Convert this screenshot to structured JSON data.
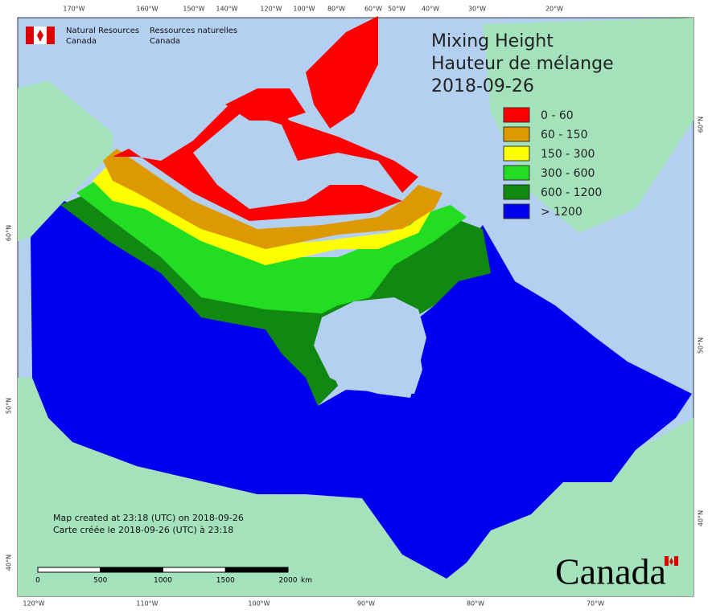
{
  "logo": {
    "en": [
      "Natural Resources",
      "Canada"
    ],
    "fr": [
      "Ressources naturelles",
      "Canada"
    ]
  },
  "title": {
    "en": "Mixing Height",
    "fr": "Hauteur de mélange",
    "date": "2018-09-26"
  },
  "legend": [
    {
      "label": "0 - 60",
      "color": "#ff0000"
    },
    {
      "label": "60 - 150",
      "color": "#dd9900"
    },
    {
      "label": "150 - 300",
      "color": "#ffff00"
    },
    {
      "label": "300 - 600",
      "color": "#22dd22"
    },
    {
      "label": "600 - 1200",
      "color": "#118811"
    },
    {
      "label": "> 1200",
      "color": "#0000ee"
    }
  ],
  "graticule": {
    "top": [
      "170°W",
      "160°W",
      "150°W",
      "140°W",
      "120°W",
      "100°W",
      "80°W",
      "60°W",
      "50°W",
      "40°W",
      "30°W",
      "20°W"
    ],
    "bottom": [
      "120°W",
      "110°W",
      "100°W",
      "90°W",
      "80°W",
      "70°W"
    ],
    "left": [
      "60°N",
      "50°N",
      "40°N"
    ],
    "right": [
      "60°N",
      "50°N",
      "40°N"
    ]
  },
  "scale": {
    "ticks": [
      0,
      500,
      1000,
      1500,
      2000
    ],
    "unit": "km"
  },
  "notes": [
    "Map created at 23:18 (UTC) on 2018-09-26",
    "Carte créée le 2018-09-26 (UTC) à 23:18"
  ],
  "wordmark": "Canada"
}
